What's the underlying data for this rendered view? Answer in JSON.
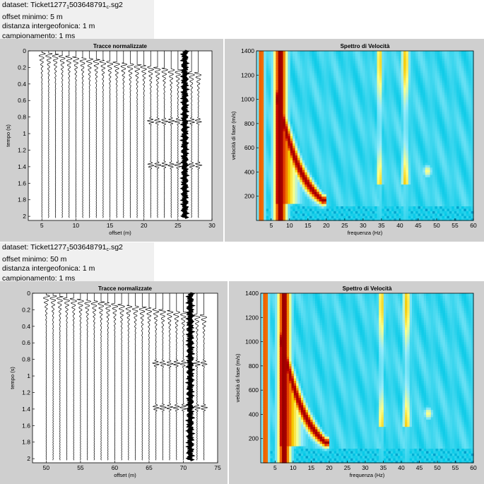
{
  "blocks": [
    {
      "info": {
        "dataset_pre": "dataset: Ticket1277",
        "dataset_sub1": "1",
        "dataset_mid": "503648791",
        "dataset_sub2": "c",
        "dataset_post": ".sg2",
        "offset_minimo": "offset minimo: 5 m",
        "distanza": "distanza intergeofonica: 1 m",
        "campionamento": "campionamento: 1 ms"
      }
    },
    {
      "info": {
        "dataset_pre": "dataset: Ticket1277",
        "dataset_sub1": "1",
        "dataset_mid": "503648791",
        "dataset_sub2": "c",
        "dataset_post": ".sg2",
        "offset_minimo": "offset minimo: 50 m",
        "distanza": "distanza intergeofonica: 1 m",
        "campionamento": "campionamento: 1 ms"
      }
    }
  ],
  "colors": {
    "panel_bg": "#cfcfcf",
    "info_bg": "#f0f0f0",
    "spectrum_low": "#00c8e6",
    "spectrum_high": "#7a0000"
  },
  "chart_data": [
    {
      "type": "seismogram",
      "title": "Tracce normalizzate",
      "xlabel": "offset (m)",
      "ylabel": "tempo (s)",
      "xlim": [
        3,
        30
      ],
      "ylim": [
        0,
        2.05
      ],
      "y_reversed": true,
      "xticks": [
        5,
        10,
        15,
        20,
        25,
        30
      ],
      "yticks": [
        0,
        0.2,
        0.4,
        0.6,
        0.8,
        1,
        1.2,
        1.4,
        1.6,
        1.8,
        2
      ],
      "trace_offsets": [
        5,
        6,
        7,
        8,
        9,
        10,
        11,
        12,
        13,
        14,
        15,
        16,
        17,
        18,
        19,
        20,
        21,
        22,
        23,
        24,
        25,
        26,
        27,
        28
      ],
      "first_arrival_start_s": 0.02,
      "first_arrival_slowness_s_per_m": 0.0105,
      "strong_trace_offset": 26,
      "event_times_s": [
        0.85,
        1.38
      ],
      "event_offset_range": [
        21,
        28
      ]
    },
    {
      "type": "heatmap",
      "title": "Spettro di Velocità",
      "xlabel": "frequenza (Hz)",
      "ylabel": "velocità di fase (m/s)",
      "xlim": [
        1,
        60
      ],
      "ylim": [
        0,
        1400
      ],
      "xticks": [
        5,
        10,
        15,
        20,
        25,
        30,
        35,
        40,
        45,
        50,
        55,
        60
      ],
      "yticks": [
        200,
        400,
        600,
        800,
        1000,
        1200,
        1400
      ],
      "colormap": "jet",
      "features": [
        {
          "kind": "band",
          "f_center": 2.3,
          "width": 1.0,
          "amplitude": 0.9
        },
        {
          "kind": "band",
          "f_center": 7.5,
          "width": 2.2,
          "amplitude": 0.97
        },
        {
          "kind": "band",
          "f_center": 34.5,
          "width": 1.0,
          "amplitude": 0.72
        },
        {
          "kind": "band",
          "f_center": 41.5,
          "width": 1.3,
          "amplitude": 0.72
        },
        {
          "kind": "dispersion",
          "f_range": [
            7,
            19
          ],
          "v_at_f_min": 1000,
          "v_at_f_max": 170,
          "amplitude": 0.95
        },
        {
          "kind": "blob",
          "f": 47.5,
          "v": 410,
          "amplitude": 0.6
        }
      ]
    },
    {
      "type": "seismogram",
      "title": "Tracce normalizzate",
      "xlabel": "offset (m)",
      "ylabel": "tempo (s)",
      "xlim": [
        48,
        75
      ],
      "ylim": [
        0,
        2.05
      ],
      "y_reversed": true,
      "xticks": [
        50,
        55,
        60,
        65,
        70,
        75
      ],
      "yticks": [
        0,
        0.2,
        0.4,
        0.6,
        0.8,
        1,
        1.2,
        1.4,
        1.6,
        1.8,
        2
      ],
      "trace_offsets": [
        50,
        51,
        52,
        53,
        54,
        55,
        56,
        57,
        58,
        59,
        60,
        61,
        62,
        63,
        64,
        65,
        66,
        67,
        68,
        69,
        70,
        71,
        72,
        73
      ],
      "first_arrival_start_s": 0.02,
      "first_arrival_slowness_s_per_m": 0.0105,
      "strong_trace_offset": 71,
      "event_times_s": [
        0.85,
        1.38
      ],
      "event_offset_range": [
        66,
        73
      ]
    },
    {
      "type": "heatmap",
      "title": "Spettro di Velocità",
      "xlabel": "frequenza (Hz)",
      "ylabel": "velocità di fase (m/s)",
      "xlim": [
        1,
        60
      ],
      "ylim": [
        0,
        1400
      ],
      "xticks": [
        5,
        10,
        15,
        20,
        25,
        30,
        35,
        40,
        45,
        50,
        55,
        60
      ],
      "yticks": [
        200,
        400,
        600,
        800,
        1000,
        1200,
        1400
      ],
      "colormap": "jet",
      "features": [
        {
          "kind": "band",
          "f_center": 2.3,
          "width": 1.0,
          "amplitude": 0.9
        },
        {
          "kind": "band",
          "f_center": 7.5,
          "width": 2.2,
          "amplitude": 0.97
        },
        {
          "kind": "band",
          "f_center": 34.5,
          "width": 1.0,
          "amplitude": 0.72
        },
        {
          "kind": "band",
          "f_center": 41.5,
          "width": 1.3,
          "amplitude": 0.72
        },
        {
          "kind": "dispersion",
          "f_range": [
            7,
            19
          ],
          "v_at_f_min": 1000,
          "v_at_f_max": 170,
          "amplitude": 0.95
        },
        {
          "kind": "blob",
          "f": 47.5,
          "v": 410,
          "amplitude": 0.6
        }
      ]
    }
  ]
}
